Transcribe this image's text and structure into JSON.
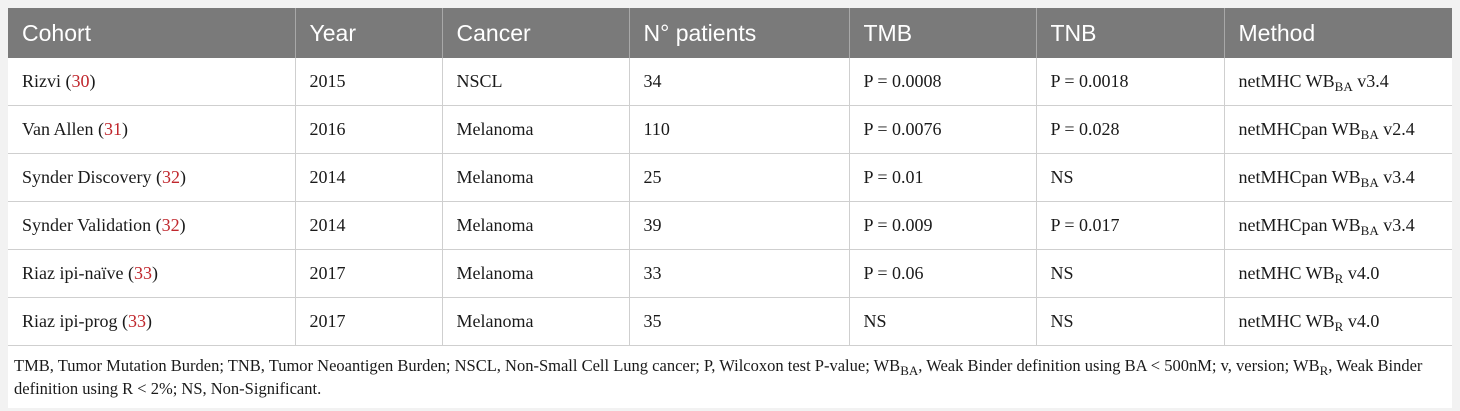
{
  "table": {
    "headers": [
      "Cohort",
      "Year",
      "Cancer",
      "N° patients",
      "TMB",
      "TNB",
      "Method"
    ],
    "rows": [
      {
        "cohort": "Rizvi",
        "ref": "30",
        "year": "2015",
        "cancer": "NSCL",
        "patients": "34",
        "tmb": "P = 0.0008",
        "tnb": "P = 0.0018",
        "method_pre": "netMHC WB",
        "method_sub": "BA",
        "method_post": "v3.4"
      },
      {
        "cohort": "Van Allen",
        "ref": "31",
        "year": "2016",
        "cancer": "Melanoma",
        "patients": "110",
        "tmb": "P = 0.0076",
        "tnb": "P = 0.028",
        "method_pre": "netMHCpan WB",
        "method_sub": "BA",
        "method_post": "v2.4"
      },
      {
        "cohort": "Synder Discovery",
        "ref": "32",
        "year": "2014",
        "cancer": "Melanoma",
        "patients": "25",
        "tmb": "P = 0.01",
        "tnb": "NS",
        "method_pre": "netMHCpan WB",
        "method_sub": "BA",
        "method_post": "v3.4"
      },
      {
        "cohort": "Synder Validation",
        "ref": "32",
        "year": "2014",
        "cancer": "Melanoma",
        "patients": "39",
        "tmb": "P = 0.009",
        "tnb": "P = 0.017",
        "method_pre": "netMHCpan WB",
        "method_sub": "BA",
        "method_post": "v3.4"
      },
      {
        "cohort": "Riaz ipi-naïve",
        "ref": "33",
        "year": "2017",
        "cancer": "Melanoma",
        "patients": "33",
        "tmb": "P = 0.06",
        "tnb": "NS",
        "method_pre": "netMHC WB",
        "method_sub": "R",
        "method_post": "v4.0"
      },
      {
        "cohort": "Riaz ipi-prog",
        "ref": "33",
        "year": "2017",
        "cancer": "Melanoma",
        "patients": "35",
        "tmb": "NS",
        "tnb": "NS",
        "method_pre": "netMHC WB",
        "method_sub": "R",
        "method_post": "v4.0"
      }
    ]
  },
  "footnote": {
    "part1": "TMB, Tumor Mutation Burden; TNB, Tumor Neoantigen Burden; NSCL, Non-Small Cell Lung cancer; P, Wilcoxon test P-value; WB",
    "sub1": "BA",
    "part2": ", Weak Binder definition using BA < 500nM; v, version; WB",
    "sub2": "R",
    "part3": ", Weak Binder definition using R < 2%; NS, Non-Significant."
  }
}
